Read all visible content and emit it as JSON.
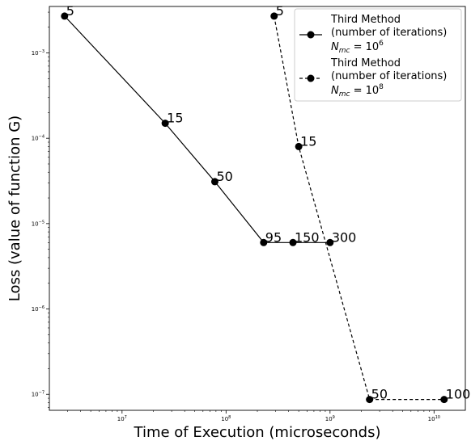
{
  "chart_data": {
    "type": "line",
    "xlabel": "Time of Execution (microseconds)",
    "ylabel": "Loss (value of function G)",
    "xscale": "log",
    "yscale": "log",
    "xlim": [
      2000000.0,
      20000000000.0
    ],
    "ylim": [
      6.5e-08,
      0.0035
    ],
    "x_ticks": [
      {
        "value": 10000000.0,
        "label": "10",
        "exp": "7"
      },
      {
        "value": 100000000.0,
        "label": "10",
        "exp": "8"
      },
      {
        "value": 1000000000.0,
        "label": "10",
        "exp": "9"
      },
      {
        "value": 10000000000.0,
        "label": "10",
        "exp": "10"
      }
    ],
    "y_ticks": [
      {
        "value": 0.001,
        "label": "10",
        "exp": "−3"
      },
      {
        "value": 0.0001,
        "label": "10",
        "exp": "−4"
      },
      {
        "value": 1e-05,
        "label": "10",
        "exp": "−5"
      },
      {
        "value": 1e-06,
        "label": "10",
        "exp": "−6"
      },
      {
        "value": 1e-07,
        "label": "10",
        "exp": "−7"
      }
    ],
    "legend_position": "top-right",
    "series": [
      {
        "legend_lines": [
          "Third Method",
          "(number of iterations)"
        ],
        "legend_nmc": {
          "n": "N",
          "sub": "mc",
          "eq": " = 10",
          "exp": "6"
        },
        "line_style": "solid",
        "color": "#000000",
        "points": [
          {
            "x": 2800000.0,
            "y": 0.0027,
            "label": "5"
          },
          {
            "x": 26000000.0,
            "y": 0.00015,
            "label": "15"
          },
          {
            "x": 78000000.0,
            "y": 3.1e-05,
            "label": "50"
          },
          {
            "x": 230000000.0,
            "y": 6e-06,
            "label": "95"
          },
          {
            "x": 440000000.0,
            "y": 6e-06,
            "label": "150"
          },
          {
            "x": 1000000000.0,
            "y": 6e-06,
            "label": "300"
          }
        ]
      },
      {
        "legend_lines": [
          "Third Method",
          "(number of iterations)"
        ],
        "legend_nmc": {
          "n": "N",
          "sub": "mc",
          "eq": " = 10",
          "exp": "8"
        },
        "line_style": "dashed",
        "color": "#000000",
        "points": [
          {
            "x": 290000000.0,
            "y": 0.0027,
            "label": "5"
          },
          {
            "x": 500000000.0,
            "y": 8e-05,
            "label": "15"
          },
          {
            "x": 2400000000.0,
            "y": 8.7e-08,
            "label": "50"
          },
          {
            "x": 12500000000.0,
            "y": 8.7e-08,
            "label": "100"
          }
        ]
      }
    ]
  }
}
